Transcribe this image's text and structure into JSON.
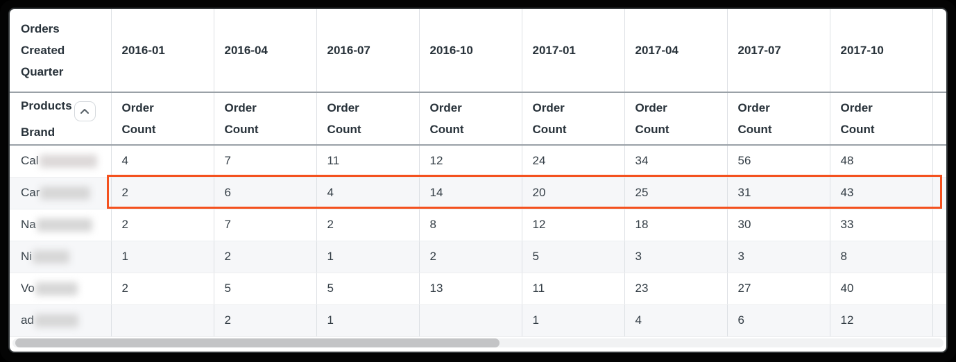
{
  "table": {
    "corner_header": "Orders Created Quarter",
    "row_dimension_header": "Products Brand",
    "measure_label": "Order Count",
    "quarter_columns": [
      "2016-01",
      "2016-04",
      "2016-07",
      "2016-10",
      "2017-01",
      "2017-04",
      "2017-07",
      "2017-10"
    ],
    "rows": [
      {
        "brand_prefix": "Cal",
        "highlighted": false,
        "values": [
          "4",
          "7",
          "11",
          "12",
          "24",
          "34",
          "56",
          "48"
        ]
      },
      {
        "brand_prefix": "Car",
        "highlighted": true,
        "values": [
          "2",
          "6",
          "4",
          "14",
          "20",
          "25",
          "31",
          "43"
        ]
      },
      {
        "brand_prefix": "Na",
        "highlighted": false,
        "values": [
          "2",
          "7",
          "2",
          "8",
          "12",
          "18",
          "30",
          "33"
        ]
      },
      {
        "brand_prefix": "Ni",
        "highlighted": false,
        "values": [
          "1",
          "2",
          "1",
          "2",
          "5",
          "3",
          "3",
          "8"
        ]
      },
      {
        "brand_prefix": "Vo",
        "highlighted": false,
        "values": [
          "2",
          "5",
          "5",
          "13",
          "11",
          "23",
          "27",
          "40"
        ]
      },
      {
        "brand_prefix": "ad",
        "highlighted": false,
        "values": [
          "",
          "2",
          "1",
          "",
          "1",
          "4",
          "6",
          "12"
        ]
      }
    ]
  },
  "icons": {
    "collapse": "chevron-up-icon"
  },
  "colors": {
    "highlight_border": "#f4511e",
    "header_text": "#28323a",
    "cell_text": "#323c44",
    "alt_row_bg": "#f6f7f9",
    "grid_line": "#dde0e4",
    "header_rule": "#9aa1a7",
    "scrollbar_thumb": "#c3c4c6"
  }
}
